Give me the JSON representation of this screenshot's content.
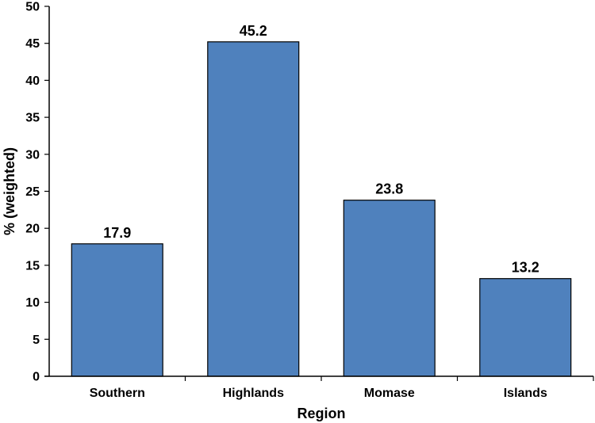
{
  "chart_data": {
    "type": "bar",
    "categories": [
      "Southern",
      "Highlands",
      "Momase",
      "Islands"
    ],
    "values": [
      17.9,
      45.2,
      23.8,
      13.2
    ],
    "value_labels": [
      "17.9",
      "45.2",
      "23.8",
      "13.2"
    ],
    "xlabel": "Region",
    "ylabel": "% (weighted)",
    "ylim": [
      0,
      50
    ],
    "yticks": [
      0,
      5,
      10,
      15,
      20,
      25,
      30,
      35,
      40,
      45,
      50
    ],
    "grid": false,
    "legend": "none",
    "colors": {
      "bar": "#4f81bd",
      "bar_stroke": "#000000",
      "axis": "#000000"
    }
  }
}
